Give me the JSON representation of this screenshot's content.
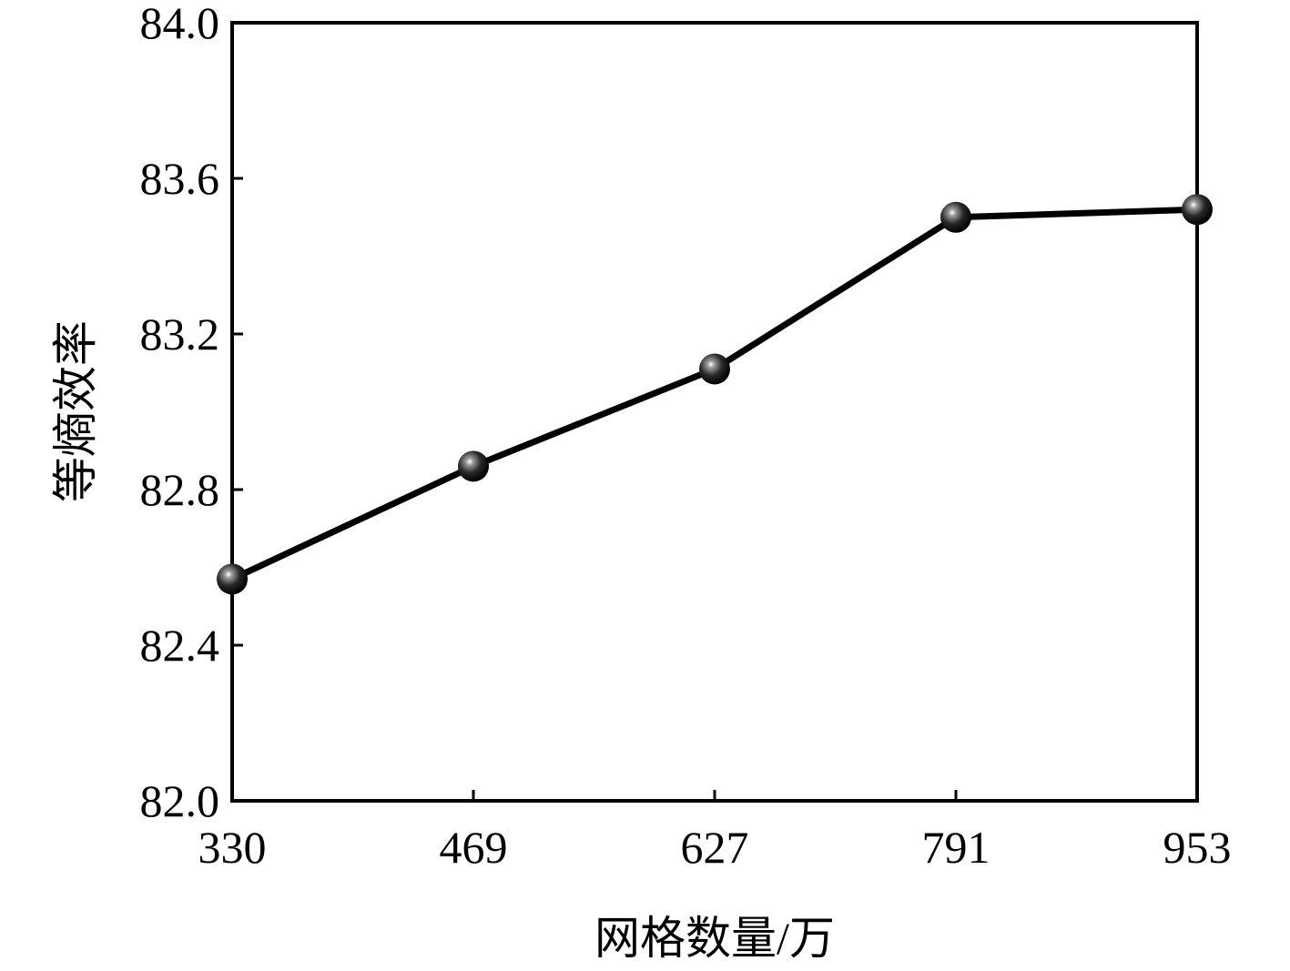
{
  "chart_data": {
    "type": "line",
    "xlabel": "网格数量/万",
    "ylabel": "等熵效率",
    "categories": [
      "330",
      "469",
      "627",
      "791",
      "953"
    ],
    "series": [
      {
        "name": null,
        "color": "#000000",
        "values": [
          82.57,
          82.86,
          83.11,
          83.5,
          83.52
        ]
      }
    ],
    "ylim": [
      82.0,
      84.0
    ],
    "yticks": [
      {
        "value": 82.0,
        "label": "82.0"
      },
      82.4,
      82.8,
      83.2,
      83.6,
      {
        "value": 84.0,
        "label": "84.0"
      }
    ],
    "grid": false
  }
}
